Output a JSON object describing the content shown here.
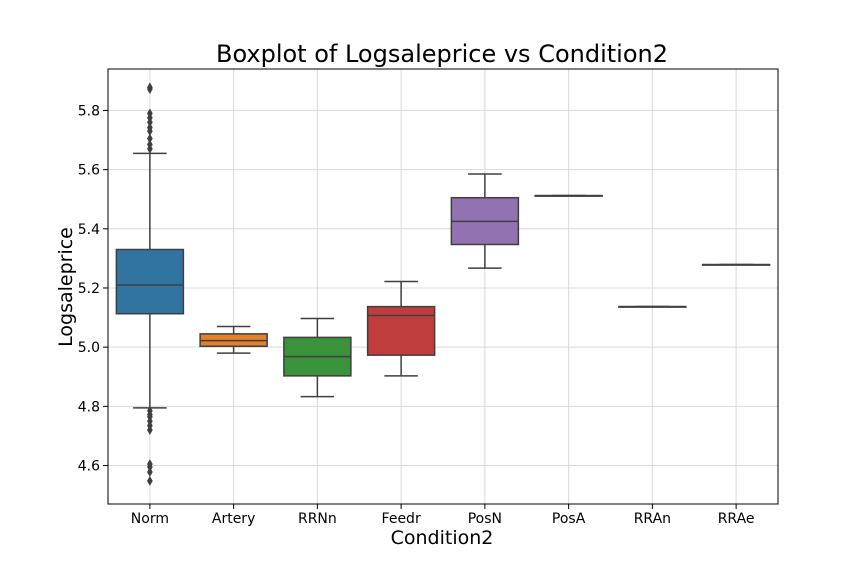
{
  "chart_data": {
    "type": "boxplot",
    "title": "Boxplot of Logsaleprice vs Condition2",
    "xlabel": "Condition2",
    "ylabel": "Logsaleprice",
    "ylim": [
      4.47,
      5.94
    ],
    "yticks": [
      4.6,
      4.8,
      5.0,
      5.2,
      5.4,
      5.6,
      5.8
    ],
    "ytick_labels": [
      "4.6",
      "4.8",
      "5.0",
      "5.2",
      "5.4",
      "5.6",
      "5.8"
    ],
    "grid": true,
    "categories": [
      "Norm",
      "Artery",
      "RRNn",
      "Feedr",
      "PosN",
      "PosA",
      "RRAn",
      "RRAe"
    ],
    "boxes": [
      {
        "category": "Norm",
        "color": "#3274a1",
        "whislo": 4.795,
        "q1": 5.113,
        "med": 5.21,
        "q3": 5.33,
        "whishi": 5.655,
        "fliers": [
          5.872,
          5.878,
          5.79,
          5.775,
          5.76,
          5.742,
          5.73,
          5.705,
          5.685,
          5.67,
          4.785,
          4.772,
          4.765,
          4.75,
          4.735,
          4.72,
          4.605,
          4.595,
          4.578,
          4.548
        ]
      },
      {
        "category": "Artery",
        "color": "#e1812c",
        "whislo": 4.98,
        "q1": 5.003,
        "med": 5.022,
        "q3": 5.045,
        "whishi": 5.07,
        "fliers": []
      },
      {
        "category": "RRNn",
        "color": "#3a923a",
        "whislo": 4.833,
        "q1": 4.903,
        "med": 4.968,
        "q3": 5.033,
        "whishi": 5.097,
        "fliers": []
      },
      {
        "category": "Feedr",
        "color": "#c03d3e",
        "whislo": 4.903,
        "q1": 4.973,
        "med": 5.107,
        "q3": 5.137,
        "whishi": 5.222,
        "fliers": []
      },
      {
        "category": "PosN",
        "color": "#9372b2",
        "whislo": 5.267,
        "q1": 5.347,
        "med": 5.425,
        "q3": 5.505,
        "whishi": 5.585,
        "fliers": []
      },
      {
        "category": "PosA",
        "color": "#845b53",
        "whislo": 5.512,
        "q1": 5.512,
        "med": 5.512,
        "q3": 5.512,
        "whishi": 5.512,
        "fliers": []
      },
      {
        "category": "RRAn",
        "color": "#d684bd",
        "whislo": 5.137,
        "q1": 5.137,
        "med": 5.137,
        "q3": 5.137,
        "whishi": 5.137,
        "fliers": []
      },
      {
        "category": "RRAe",
        "color": "#7f7f7f",
        "whislo": 5.279,
        "q1": 5.279,
        "med": 5.279,
        "q3": 5.279,
        "whishi": 5.279,
        "fliers": []
      }
    ]
  }
}
